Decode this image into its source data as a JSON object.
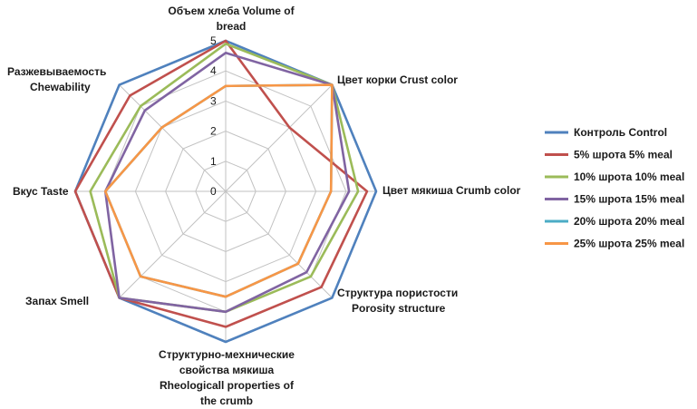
{
  "chart_data": {
    "type": "radar",
    "title": "",
    "rmin": 0,
    "rmax": 5,
    "ticks": [
      "0",
      "1",
      "2",
      "3",
      "4",
      "5"
    ],
    "axes": [
      {
        "label_lines": [
          "Объем хлеба Volume of",
          "bread"
        ]
      },
      {
        "label_lines": [
          "Цвет корки Crust color"
        ]
      },
      {
        "label_lines": [
          "Цвет мякиша Crumb color"
        ]
      },
      {
        "label_lines": [
          "Структура пористости",
          "Porosity structure"
        ]
      },
      {
        "label_lines": [
          "Структурно-мехнические",
          "свойства мякиша",
          "Rheologicall properties of",
          "the crumb"
        ]
      },
      {
        "label_lines": [
          "Запах Smell"
        ]
      },
      {
        "label_lines": [
          "Вкус Taste"
        ]
      },
      {
        "label_lines": [
          "Разжевываемость",
          "Chewability"
        ]
      }
    ],
    "series": [
      {
        "name": "Контроль Control",
        "color": "#4f81bd",
        "values": [
          5.0,
          5.0,
          5.0,
          5.0,
          5.0,
          5.0,
          5.0,
          5.0
        ]
      },
      {
        "name": "5% шрота 5% meal",
        "color": "#c0504d",
        "values": [
          5.0,
          3.0,
          4.7,
          4.5,
          4.5,
          5.0,
          5.0,
          4.5
        ]
      },
      {
        "name": "10% шрота 10% meal",
        "color": "#9bbb59",
        "values": [
          4.9,
          5.0,
          4.4,
          4.0,
          4.0,
          5.0,
          4.5,
          4.0
        ]
      },
      {
        "name": "15% шрота 15% meal",
        "color": "#8064a2",
        "values": [
          4.6,
          5.0,
          4.1,
          3.8,
          4.0,
          5.0,
          4.0,
          3.8
        ]
      },
      {
        "name": "20% шрота 20% meal",
        "color": "#4bacc6",
        "values": [
          3.5,
          5.0,
          3.5,
          3.4,
          3.5,
          4.0,
          4.0,
          3.0
        ]
      },
      {
        "name": "25% шрота 25% meal",
        "color": "#f79646",
        "values": [
          3.5,
          5.0,
          3.5,
          3.4,
          3.5,
          4.0,
          4.0,
          3.0
        ]
      }
    ]
  }
}
